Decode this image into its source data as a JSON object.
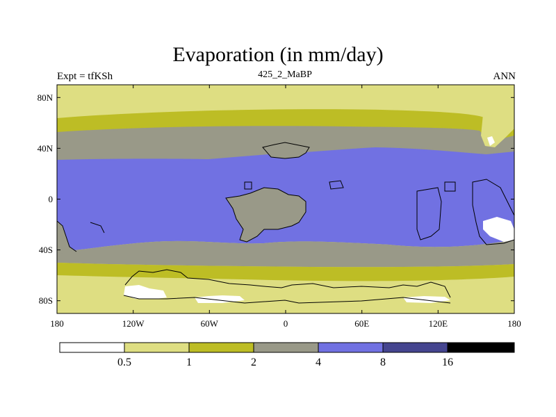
{
  "title": "Evaporation (in mm/day)",
  "subtitle_left": "Expt = tfKSh",
  "subtitle_center": "425_2_MaBP",
  "subtitle_right": "ANN",
  "x_ticks": [
    "180",
    "120W",
    "60W",
    "0",
    "60E",
    "120E",
    "180"
  ],
  "y_ticks": [
    "80N",
    "40N",
    "0",
    "40S",
    "80S"
  ],
  "colorbar": {
    "labels": [
      "0.5",
      "1",
      "2",
      "4",
      "8",
      "16"
    ],
    "colors": [
      "#ffffff",
      "#dede82",
      "#bdbd25",
      "#999988",
      "#7171e2",
      "#45458f",
      "#000000"
    ]
  },
  "colors": {
    "c_lt05": "#ffffff",
    "c_05_1": "#dede82",
    "c_1_2": "#bdbd25",
    "c_2_4": "#999988",
    "c_4_8": "#7171e2",
    "c_8_16": "#45458f"
  }
}
